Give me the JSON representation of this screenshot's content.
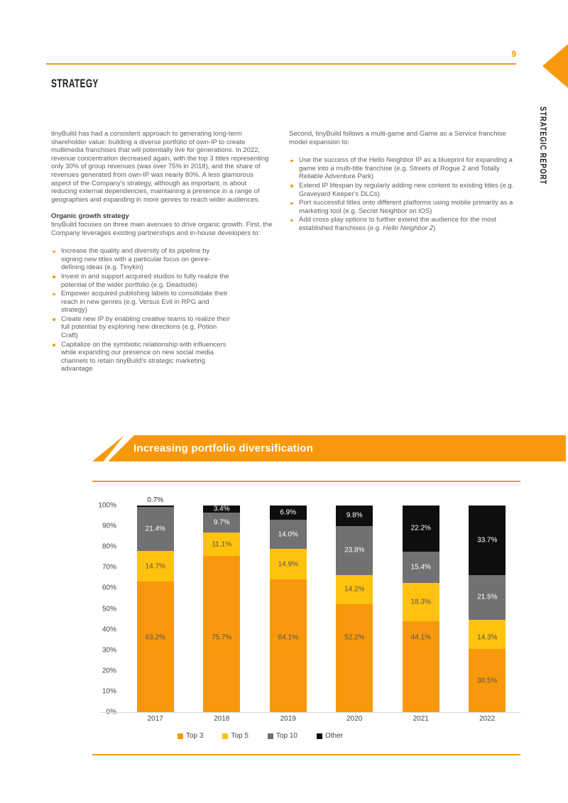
{
  "page": {
    "number": "9",
    "side_tab": "STRATEGIC REPORT",
    "section_title": "STRATEGY"
  },
  "colors": {
    "accent_orange": "#F8990D",
    "series_yellow": "#FFC20E",
    "series_gray": "#717174",
    "series_black": "#0E0E0E",
    "body_text": "#5D5E61"
  },
  "intro": {
    "left_paragraph": "tinyBuild has had a consistent approach to generating long-term shareholder value: building a diverse portfolio of own-IP to create multimedia franchises that will potentially live for generations. In 2022, revenue concentration decreased again, with the top 3 titles representing only 30% of group revenues (was over 75% in 2018), and the share of revenues generated from own-IP was nearly 80%. A less glamorous aspect of the Company's strategy, although as important, is about reducing external dependencies, maintaining a presence in a range of geographies and expanding in more genres to reach wider audiences."
  },
  "organic": {
    "heading": "Organic growth strategy",
    "paragraph": "tinyBuild focuses on three main avenues to drive organic growth. First, the Company leverages existing partnerships and in-house developers to:",
    "bullets": [
      {
        "text": "Increase the quality and diversity of its pipeline by signing new titles with a particular focus on genre-defining ideas (e.g. Tinykin)"
      },
      {
        "text": "Invest in and support acquired studios to fully realize the potential of the wider portfolio (e.g. Deadside)"
      },
      {
        "text": "Empower acquired publishing labels to consolidate their reach in new genres (e.g. Versus Evil in RPG and strategy)"
      },
      {
        "text": "Create new IP by enabling creative teams to realize their full potential by exploring new directions (e.g. Potion Craft)"
      },
      {
        "text": "Capitalize on the symbiotic relationship with influencers while expanding our presence on new social media channels to retain tinyBuild's strategic marketing advantage"
      }
    ]
  },
  "expansion": {
    "paragraph": "Second, tinyBuild follows a multi-game and Game as a Service franchise model expansion to:",
    "bullets": [
      {
        "text": "Use the success of the Hello Neighbor IP as a blueprint for expanding a game into a multi-title franchise (e.g. Streets of Rogue 2 and Totally Reliable Adventure Park)"
      },
      {
        "text": "Extend IP lifespan by regularly adding new content to existing titles (e.g. Graveyard Keeper's DLCs)"
      },
      {
        "text": "Port successful titles onto different platforms using mobile primarily as a marketing tool (e.g. Secret Neighbor on iOS)"
      },
      {
        "text": "Add cross-play options to further extend the audience for the most established franchises (e.g. ",
        "italic": "Hello Neighbor 2",
        "suffix": ")"
      }
    ]
  },
  "chart_data": {
    "type": "bar",
    "subtype": "stacked-percent",
    "title": "Increasing portfolio diversification",
    "categories": [
      "2017",
      "2018",
      "2019",
      "2020",
      "2021",
      "2022"
    ],
    "series": [
      {
        "name": "Top 3",
        "color": "#F8990D",
        "values": [
          63.2,
          75.7,
          64.1,
          52.2,
          44.1,
          30.5
        ]
      },
      {
        "name": "Top 5",
        "color": "#FFC20E",
        "values": [
          14.7,
          11.1,
          14.9,
          14.2,
          18.3,
          14.3
        ]
      },
      {
        "name": "Top 10",
        "color": "#717174",
        "values": [
          21.4,
          9.7,
          14.0,
          23.8,
          15.4,
          21.5
        ]
      },
      {
        "name": "Other",
        "color": "#0E0E0E",
        "values": [
          0.7,
          3.4,
          6.9,
          9.8,
          22.2,
          33.7
        ]
      }
    ],
    "y_ticks": [
      "100%",
      "90%",
      "80%",
      "70%",
      "60%",
      "50%",
      "40%",
      "30%",
      "20%",
      "10%",
      "0%"
    ],
    "ylim": [
      0,
      100
    ],
    "value_suffix": "%",
    "grid": false,
    "legend_position": "bottom"
  }
}
